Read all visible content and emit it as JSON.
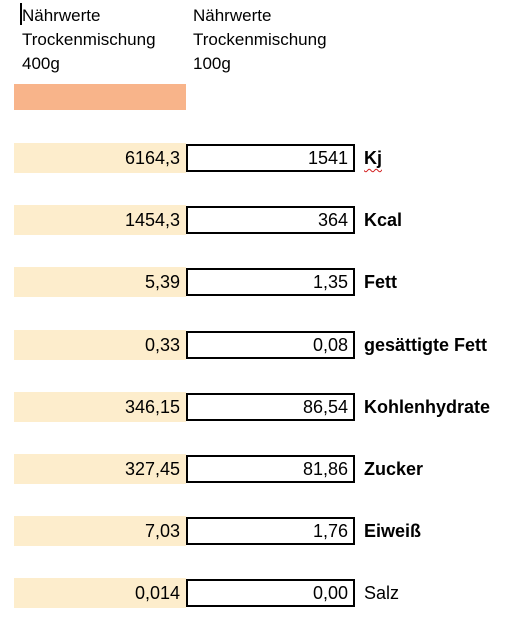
{
  "header": {
    "col1": "Nährwerte\nTrockenmischung\n400g",
    "col2": "Nährwerte\nTrockenmischung\n100g"
  },
  "colors": {
    "orange_fill": "#f8b48a",
    "light_fill": "#fdedcc",
    "spellcheck_underline": "#d21c1c"
  },
  "rows": [
    {
      "v400": "6164,3",
      "v100": "1541",
      "label": "Kj"
    },
    {
      "v400": "1454,3",
      "v100": "364",
      "label": "Kcal"
    },
    {
      "v400": "5,39",
      "v100": "1,35",
      "label": "Fett"
    },
    {
      "v400": "0,33",
      "v100": "0,08",
      "label": "gesättigte Fett"
    },
    {
      "v400": "346,15",
      "v100": "86,54",
      "label": "Kohlenhydrate"
    },
    {
      "v400": "327,45",
      "v100": "81,86",
      "label": "Zucker"
    },
    {
      "v400": "7,03",
      "v100": "1,76",
      "label": "Eiweiß"
    },
    {
      "v400": "0,014",
      "v100": "0,00",
      "label": "Salz"
    }
  ]
}
